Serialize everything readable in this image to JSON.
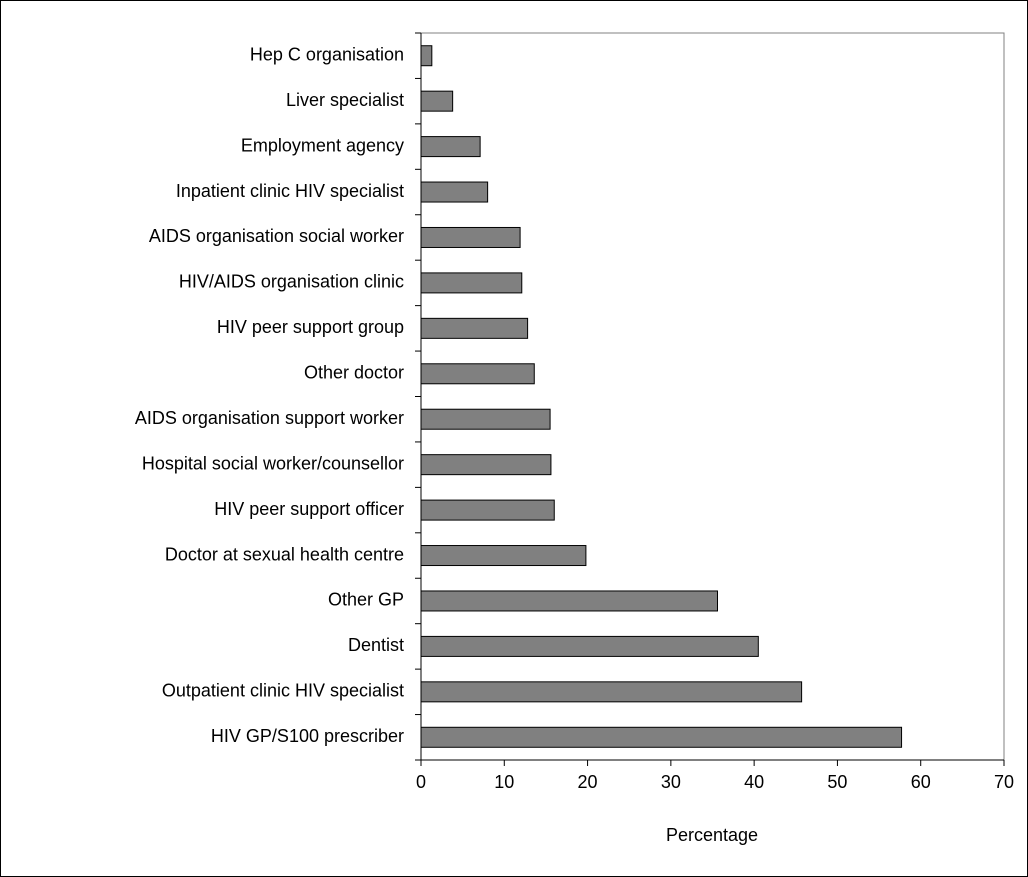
{
  "chart_data": {
    "type": "bar",
    "orientation": "horizontal",
    "x_label": "Percentage",
    "categories": [
      "Hep C organisation",
      "Liver specialist",
      "Employment agency",
      "Inpatient clinic HIV specialist",
      "AIDS organisation social worker",
      "HIV/AIDS organisation clinic",
      "HIV peer support group",
      "Other doctor",
      "AIDS organisation support worker",
      "Hospital social worker/counsellor",
      "HIV peer support officer",
      "Doctor at sexual health centre",
      "Other GP",
      "Dentist",
      "Outpatient clinic HIV specialist",
      "HIV GP/S100 prescriber"
    ],
    "values": [
      1.3,
      3.8,
      7.1,
      8.0,
      11.9,
      12.1,
      12.8,
      13.6,
      15.5,
      15.6,
      16.0,
      19.8,
      35.6,
      40.5,
      45.7,
      57.7
    ],
    "color": "#808080",
    "xlim": [
      0,
      70
    ],
    "xticks": [
      0,
      10,
      20,
      30,
      40,
      50,
      60,
      70
    ]
  }
}
